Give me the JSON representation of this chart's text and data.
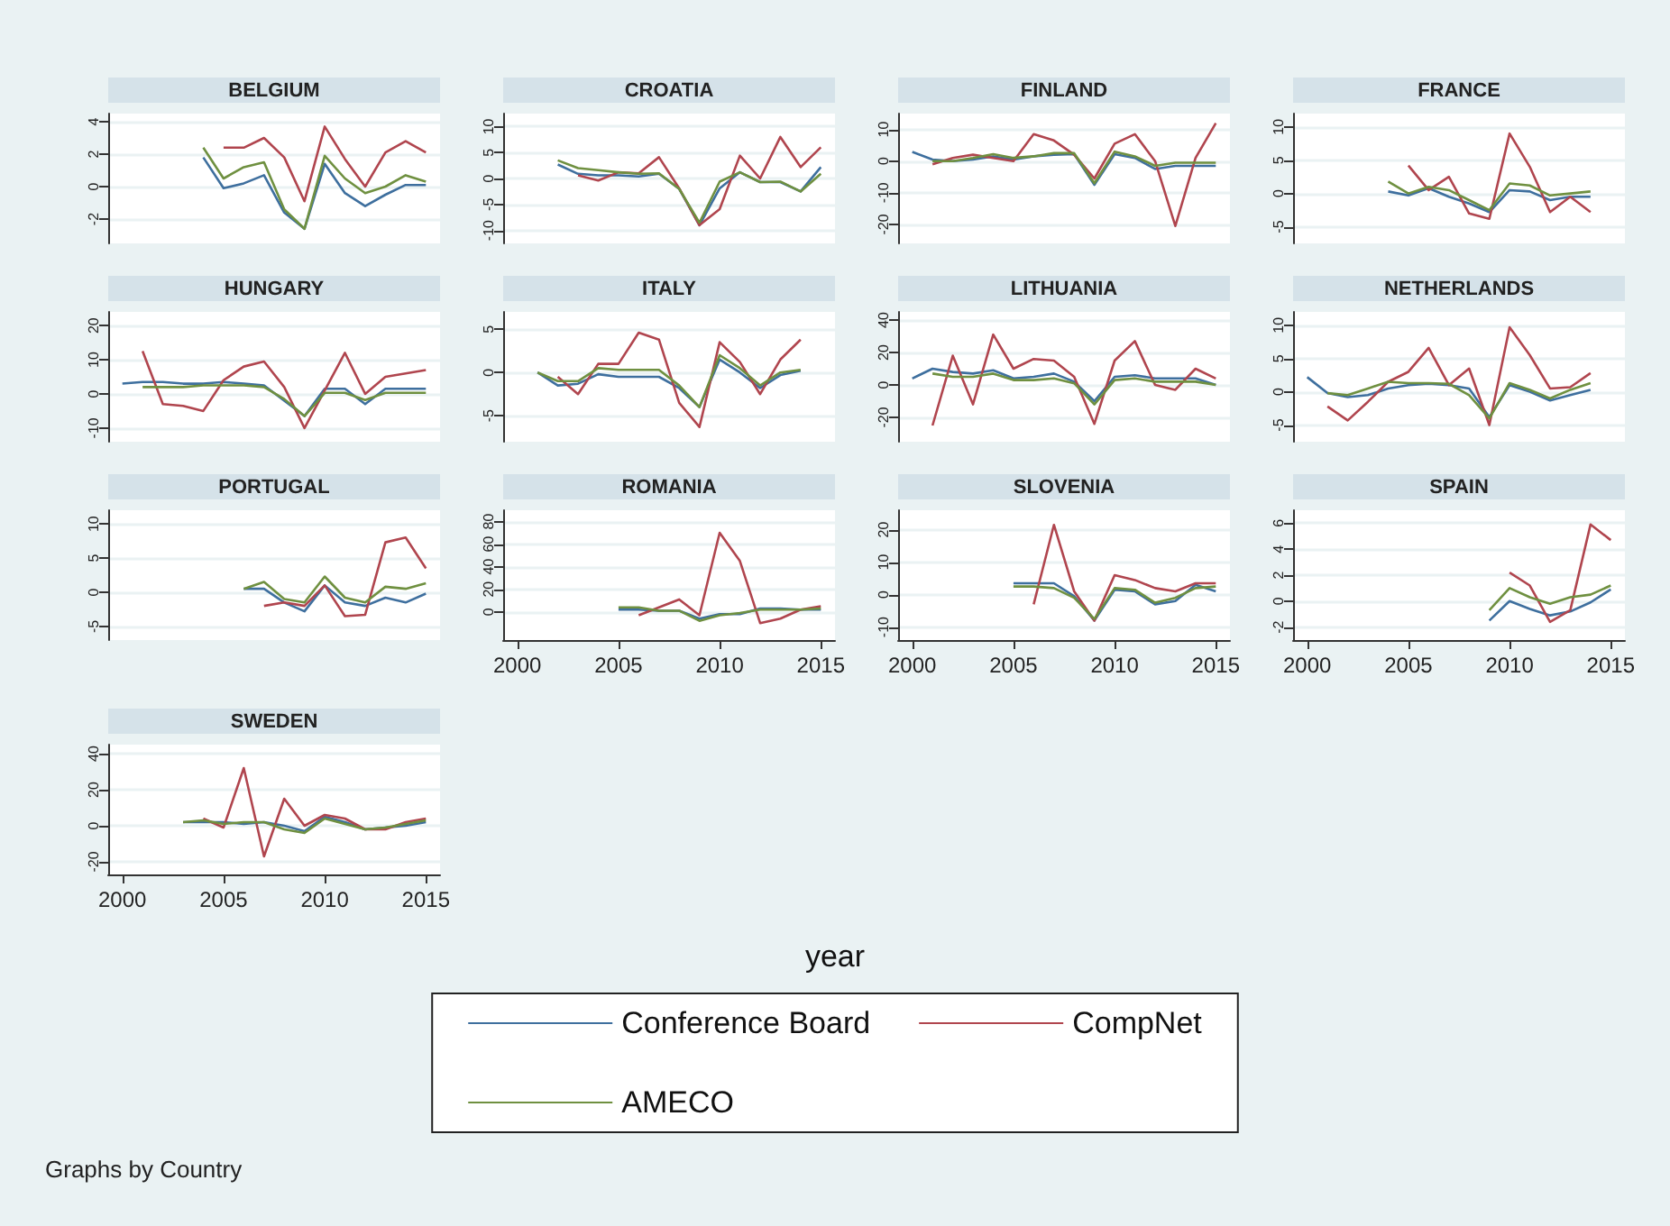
{
  "chart_data": [
    {
      "type": "line",
      "title": "BELGIUM",
      "legend": "bottom",
      "x": [
        2004,
        2005,
        2006,
        2007,
        2008,
        2009,
        2010,
        2011,
        2012,
        2013,
        2014,
        2015
      ],
      "xlim": [
        1999.3,
        2015.7
      ],
      "xticks": [
        2000,
        2005,
        2010,
        2015
      ],
      "ylim": [
        -3.5,
        4.5
      ],
      "yticks": [
        -2,
        0,
        2,
        4
      ],
      "tick_labels": "y",
      "grid": "y",
      "marker": "none",
      "series": [
        {
          "name": "Conference Board",
          "color": "#3e6f9e",
          "values": [
            1.8,
            -0.1,
            0.2,
            0.7,
            -1.6,
            -2.6,
            1.4,
            -0.4,
            -1.2,
            -0.5,
            0.1,
            0.1
          ]
        },
        {
          "name": "CompNet",
          "color": "#b0454e",
          "values": [
            null,
            2.4,
            2.4,
            3,
            1.8,
            -0.9,
            3.7,
            1.7,
            0,
            2.1,
            2.8,
            2.1
          ]
        },
        {
          "name": "AMECO",
          "color": "#6f9040",
          "values": [
            2.4,
            0.5,
            1.2,
            1.5,
            -1.4,
            -2.6,
            1.9,
            0.5,
            -0.4,
            0,
            0.7,
            0.3
          ]
        }
      ]
    },
    {
      "type": "line",
      "title": "CROATIA",
      "x": [
        2002,
        2003,
        2004,
        2005,
        2006,
        2007,
        2008,
        2009,
        2010,
        2011,
        2012,
        2013,
        2014,
        2015
      ],
      "xlim": [
        1999.3,
        2015.7
      ],
      "xticks": [
        2000,
        2005,
        2010,
        2015
      ],
      "ylim": [
        -12.5,
        12.5
      ],
      "yticks": [
        -10,
        -5,
        0,
        5,
        10
      ],
      "tick_labels": "y",
      "grid": "y",
      "marker": "none",
      "series": [
        {
          "name": "Conference Board",
          "color": "#3e6f9e",
          "values": [
            2.7,
            0.9,
            0.6,
            0.6,
            0.4,
            0.9,
            -2,
            -9,
            -1.9,
            1.2,
            -0.7,
            -0.7,
            -2.5,
            2.2
          ]
        },
        {
          "name": "CompNet",
          "color": "#b0454e",
          "values": [
            null,
            0.6,
            -0.4,
            1.2,
            1,
            4.1,
            -1.9,
            -9,
            -5.9,
            4.4,
            0,
            8,
            2.2,
            6
          ]
        },
        {
          "name": "AMECO",
          "color": "#6f9040",
          "values": [
            3.5,
            2,
            1.6,
            1.2,
            0.9,
            1,
            -2,
            -8.5,
            -0.6,
            1.2,
            -0.7,
            -0.6,
            -2.5,
            0.9
          ]
        }
      ]
    },
    {
      "type": "line",
      "title": "FINLAND",
      "x": [
        2000,
        2001,
        2002,
        2003,
        2004,
        2005,
        2006,
        2007,
        2008,
        2009,
        2010,
        2011,
        2012,
        2013,
        2014,
        2015
      ],
      "xlim": [
        1999.3,
        2015.7
      ],
      "xticks": [
        2000,
        2005,
        2010,
        2015
      ],
      "ylim": [
        -26,
        15
      ],
      "yticks": [
        -20,
        -10,
        0,
        10
      ],
      "tick_labels": "y",
      "grid": "y",
      "marker": "none",
      "series": [
        {
          "name": "Conference Board",
          "color": "#3e6f9e",
          "values": [
            2.9,
            0.5,
            0,
            0.5,
            1.5,
            0.5,
            1.5,
            2,
            2.2,
            -7.5,
            2.2,
            1,
            -2.5,
            -1.5,
            -1.5,
            -1.5
          ]
        },
        {
          "name": "CompNet",
          "color": "#b0454e",
          "values": [
            null,
            -1,
            1,
            2,
            1,
            0,
            8.5,
            6.5,
            2,
            -5.5,
            5.5,
            8.5,
            0,
            -20.5,
            1,
            12
          ]
        },
        {
          "name": "AMECO",
          "color": "#6f9040",
          "values": [
            null,
            0,
            0,
            1,
            2.2,
            1,
            1.5,
            2.5,
            2.5,
            -7,
            3,
            1.5,
            -1.5,
            -0.5,
            -0.5,
            -0.5
          ]
        }
      ]
    },
    {
      "type": "line",
      "title": "FRANCE",
      "x": [
        2004,
        2005,
        2006,
        2007,
        2008,
        2009,
        2010,
        2011,
        2012,
        2013,
        2014
      ],
      "xlim": [
        1999.3,
        2015.7
      ],
      "xticks": [
        2000,
        2005,
        2010,
        2015
      ],
      "ylim": [
        -7.5,
        12
      ],
      "yticks": [
        -5,
        0,
        5,
        10
      ],
      "tick_labels": "y",
      "grid": "y",
      "marker": "none",
      "series": [
        {
          "name": "Conference Board",
          "color": "#3e6f9e",
          "values": [
            0.3,
            -0.3,
            0.8,
            -0.5,
            -1.5,
            -2.8,
            0.5,
            0.3,
            -1,
            -0.5,
            -0.5
          ]
        },
        {
          "name": "CompNet",
          "color": "#b0454e",
          "values": [
            null,
            4.2,
            0.5,
            2.5,
            -3,
            -3.8,
            9,
            4,
            -2.8,
            -0.5,
            -2.8
          ]
        },
        {
          "name": "AMECO",
          "color": "#6f9040",
          "values": [
            1.8,
            0,
            1,
            0.5,
            -1,
            -2.5,
            1.5,
            1.2,
            -0.3,
            0,
            0.3
          ]
        }
      ]
    },
    {
      "type": "line",
      "title": "HUNGARY",
      "x": [
        2000,
        2001,
        2002,
        2003,
        2004,
        2005,
        2006,
        2007,
        2008,
        2009,
        2010,
        2011,
        2012,
        2013,
        2014,
        2015
      ],
      "xlim": [
        1999.3,
        2015.7
      ],
      "xticks": [
        2000,
        2005,
        2010,
        2015
      ],
      "ylim": [
        -14,
        24
      ],
      "yticks": [
        -10,
        0,
        10,
        20
      ],
      "tick_labels": "y",
      "grid": "y",
      "marker": "none",
      "series": [
        {
          "name": "Conference Board",
          "color": "#3e6f9e",
          "values": [
            3,
            3.5,
            3.5,
            3,
            3,
            3.5,
            3,
            2.5,
            -2,
            -6.5,
            1.5,
            1.5,
            -3,
            1.5,
            1.5,
            1.5
          ]
        },
        {
          "name": "CompNet",
          "color": "#b0454e",
          "values": [
            null,
            12.5,
            -3,
            -3.5,
            -5,
            4,
            8,
            9.5,
            2,
            -10,
            1,
            12,
            0,
            5,
            6,
            7
          ]
        },
        {
          "name": "AMECO",
          "color": "#6f9040",
          "values": [
            null,
            2,
            2,
            2,
            2.5,
            2.5,
            2.5,
            2,
            -1.5,
            -6.5,
            0.3,
            0.3,
            -1.8,
            0.3,
            0.3,
            0.3
          ]
        }
      ]
    },
    {
      "type": "line",
      "title": "ITALY",
      "x": [
        2001,
        2002,
        2003,
        2004,
        2005,
        2006,
        2007,
        2008,
        2009,
        2010,
        2011,
        2012,
        2013,
        2014
      ],
      "xlim": [
        1999.3,
        2015.7
      ],
      "xticks": [
        2000,
        2005,
        2010,
        2015
      ],
      "ylim": [
        -8,
        7
      ],
      "yticks": [
        -5,
        0,
        5
      ],
      "tick_labels": "y",
      "grid": "y",
      "marker": "none",
      "series": [
        {
          "name": "Conference Board",
          "color": "#3e6f9e",
          "values": [
            0,
            -1.5,
            -1.3,
            -0.2,
            -0.5,
            -0.5,
            -0.5,
            -1.8,
            -4,
            1.5,
            0,
            -1.8,
            -0.3,
            0.2
          ]
        },
        {
          "name": "CompNet",
          "color": "#b0454e",
          "values": [
            null,
            -0.5,
            -2.5,
            1,
            1,
            4.6,
            3.8,
            -3.5,
            -6.3,
            3.5,
            1.2,
            -2.5,
            1.5,
            3.8
          ]
        },
        {
          "name": "AMECO",
          "color": "#6f9040",
          "values": [
            0,
            -1,
            -1,
            0.5,
            0.3,
            0.3,
            0.3,
            -1.5,
            -4,
            2,
            0.5,
            -1.5,
            0,
            0.3
          ]
        }
      ]
    },
    {
      "type": "line",
      "title": "LITHUANIA",
      "x": [
        2000,
        2001,
        2002,
        2003,
        2004,
        2005,
        2006,
        2007,
        2008,
        2009,
        2010,
        2011,
        2012,
        2013,
        2014,
        2015
      ],
      "xlim": [
        1999.3,
        2015.7
      ],
      "xticks": [
        2000,
        2005,
        2010,
        2015
      ],
      "ylim": [
        -35,
        45
      ],
      "yticks": [
        -20,
        0,
        20,
        40
      ],
      "tick_labels": "y",
      "grid": "y",
      "marker": "none",
      "series": [
        {
          "name": "Conference Board",
          "color": "#3e6f9e",
          "values": [
            4,
            10,
            8,
            7,
            9,
            4,
            5,
            7,
            2,
            -10,
            5,
            6,
            4,
            4,
            4,
            0
          ]
        },
        {
          "name": "CompNet",
          "color": "#b0454e",
          "values": [
            null,
            -25,
            18,
            -12,
            31,
            10,
            16,
            15,
            5,
            -24,
            15,
            27,
            0,
            -3,
            10,
            4
          ]
        },
        {
          "name": "AMECO",
          "color": "#6f9040",
          "values": [
            null,
            7,
            5,
            5,
            7,
            3,
            3,
            4,
            1,
            -12,
            3,
            4,
            2,
            2,
            2,
            0
          ]
        }
      ]
    },
    {
      "type": "line",
      "title": "NETHERLANDS",
      "x": [
        2000,
        2001,
        2002,
        2003,
        2004,
        2005,
        2006,
        2007,
        2008,
        2009,
        2010,
        2011,
        2012,
        2013,
        2014
      ],
      "xlim": [
        1999.3,
        2015.7
      ],
      "xticks": [
        2000,
        2005,
        2010,
        2015
      ],
      "ylim": [
        -7.5,
        12
      ],
      "yticks": [
        -5,
        0,
        5,
        10
      ],
      "tick_labels": "y",
      "grid": "y",
      "marker": "none",
      "series": [
        {
          "name": "Conference Board",
          "color": "#3e6f9e",
          "values": [
            2.2,
            -0.2,
            -0.8,
            -0.5,
            0.5,
            1,
            1.2,
            1,
            0.5,
            -3.8,
            1,
            0,
            -1.3,
            -0.5,
            0.3
          ]
        },
        {
          "name": "CompNet",
          "color": "#b0454e",
          "values": [
            null,
            -2.2,
            -4.3,
            -1.5,
            1.5,
            3,
            6.6,
            1,
            3.5,
            -5,
            9.7,
            5.5,
            0.5,
            0.7,
            2.8
          ]
        },
        {
          "name": "AMECO",
          "color": "#6f9040",
          "values": [
            null,
            -0.2,
            -0.5,
            0.5,
            1.5,
            1.3,
            1.3,
            1.2,
            -0.5,
            -4,
            1.3,
            0.3,
            -1,
            0.3,
            1.3
          ]
        }
      ]
    },
    {
      "type": "line",
      "title": "PORTUGAL",
      "x": [
        2006,
        2007,
        2008,
        2009,
        2010,
        2011,
        2012,
        2013,
        2014,
        2015
      ],
      "xlim": [
        1999.3,
        2015.7
      ],
      "xticks": [
        2000,
        2005,
        2010,
        2015
      ],
      "ylim": [
        -7,
        12
      ],
      "yticks": [
        -5,
        0,
        5,
        10
      ],
      "tick_labels": "y",
      "grid": "y",
      "marker": "none",
      "series": [
        {
          "name": "Conference Board",
          "color": "#3e6f9e",
          "values": [
            0.5,
            0.5,
            -1.5,
            -2.8,
            1,
            -1.5,
            -2,
            -0.8,
            -1.5,
            -0.2
          ]
        },
        {
          "name": "CompNet",
          "color": "#b0454e",
          "values": [
            null,
            -2,
            -1.5,
            -2,
            1,
            -3.5,
            -3.3,
            7.3,
            8,
            3.5
          ]
        },
        {
          "name": "AMECO",
          "color": "#6f9040",
          "values": [
            0.5,
            1.5,
            -1,
            -1.5,
            2.3,
            -0.8,
            -1.5,
            0.8,
            0.5,
            1.3
          ]
        }
      ]
    },
    {
      "type": "line",
      "title": "ROMANIA",
      "x": [
        2005,
        2006,
        2007,
        2008,
        2009,
        2010,
        2011,
        2012,
        2013,
        2014,
        2015
      ],
      "xlim": [
        1999.3,
        2015.7
      ],
      "xticks": [
        2000,
        2005,
        2010,
        2015
      ],
      "ylim": [
        -25,
        90
      ],
      "yticks": [
        0,
        20,
        40,
        60,
        80
      ],
      "grid": "y",
      "marker": "none",
      "series": [
        {
          "name": "Conference Board",
          "color": "#3e6f9e",
          "values": [
            2,
            2,
            1,
            1,
            -6,
            -2,
            -2,
            3,
            3,
            2,
            2
          ]
        },
        {
          "name": "CompNet",
          "color": "#b0454e",
          "values": [
            null,
            -3,
            4,
            11,
            -3,
            70,
            45,
            -10,
            -6,
            2,
            5
          ]
        },
        {
          "name": "AMECO",
          "color": "#6f9040",
          "values": [
            4,
            4,
            1,
            1,
            -8,
            -3,
            -1,
            2,
            2,
            2,
            3
          ]
        }
      ]
    },
    {
      "type": "line",
      "title": "SLOVENIA",
      "x": [
        2005,
        2006,
        2007,
        2008,
        2009,
        2010,
        2011,
        2012,
        2013,
        2014,
        2015
      ],
      "xlim": [
        1999.3,
        2015.7
      ],
      "xticks": [
        2000,
        2005,
        2010,
        2015
      ],
      "ylim": [
        -14,
        26
      ],
      "yticks": [
        -10,
        0,
        10,
        20
      ],
      "grid": "y",
      "marker": "none",
      "series": [
        {
          "name": "Conference Board",
          "color": "#3e6f9e",
          "values": [
            3.5,
            3.5,
            3.5,
            -0.5,
            -8,
            1.5,
            1,
            -3,
            -2,
            3,
            1
          ]
        },
        {
          "name": "CompNet",
          "color": "#b0454e",
          "values": [
            null,
            -3,
            21.5,
            1,
            -8,
            6,
            4.5,
            2,
            1,
            3.5,
            3.5
          ]
        },
        {
          "name": "AMECO",
          "color": "#6f9040",
          "values": [
            2.5,
            2.5,
            2,
            -1,
            -7.5,
            2,
            1.5,
            -2.5,
            -1,
            2,
            2.5
          ]
        }
      ]
    },
    {
      "type": "line",
      "title": "SPAIN",
      "x": [
        2009,
        2010,
        2011,
        2012,
        2013,
        2014,
        2015
      ],
      "xlim": [
        1999.3,
        2015.7
      ],
      "xticks": [
        2000,
        2005,
        2010,
        2015
      ],
      "ylim": [
        -3,
        7
      ],
      "yticks": [
        -2,
        0,
        2,
        4,
        6
      ],
      "grid": "y",
      "marker": "none",
      "series": [
        {
          "name": "Conference Board",
          "color": "#3e6f9e",
          "values": [
            -1.5,
            0,
            -0.6,
            -1.1,
            -0.8,
            -0.1,
            0.9
          ]
        },
        {
          "name": "CompNet",
          "color": "#b0454e",
          "values": [
            null,
            2.2,
            1.2,
            -1.6,
            -0.7,
            5.9,
            4.7
          ]
        },
        {
          "name": "AMECO",
          "color": "#6f9040",
          "values": [
            -0.7,
            1,
            0.3,
            -0.2,
            0.3,
            0.5,
            1.2
          ]
        }
      ]
    },
    {
      "type": "line",
      "title": "SWEDEN",
      "annotations": [
        "year",
        "Graphs by Country"
      ],
      "x": [
        2003,
        2004,
        2005,
        2006,
        2007,
        2008,
        2009,
        2010,
        2011,
        2012,
        2013,
        2014,
        2015
      ],
      "xlim": [
        1999.3,
        2015.7
      ],
      "xticks": [
        2000,
        2005,
        2010,
        2015
      ],
      "ylim": [
        -27,
        45
      ],
      "yticks": [
        -20,
        0,
        20,
        40
      ],
      "grid": "y",
      "marker": "none",
      "series": [
        {
          "name": "Conference Board",
          "color": "#3e6f9e",
          "values": [
            2,
            2,
            2,
            1,
            2,
            0,
            -3,
            5,
            2,
            -2,
            -1,
            0,
            2
          ]
        },
        {
          "name": "CompNet",
          "color": "#b0454e",
          "values": [
            null,
            4,
            -1,
            32,
            -17,
            15,
            0,
            6,
            4,
            -2,
            -2,
            2,
            4
          ]
        },
        {
          "name": "AMECO",
          "color": "#6f9040",
          "values": [
            2,
            3,
            1,
            2,
            2,
            -2,
            -4,
            4,
            1,
            -2,
            -1,
            1,
            3
          ]
        }
      ]
    }
  ]
}
